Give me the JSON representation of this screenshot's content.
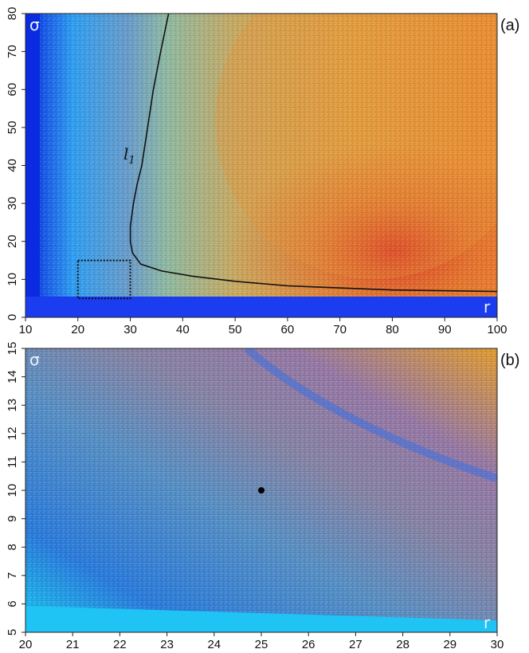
{
  "chart_data": [
    {
      "type": "heatmap",
      "panel_label": "(a)",
      "xlabel": "r",
      "ylabel": "σ",
      "xlim": [
        10,
        100
      ],
      "ylim": [
        0,
        80
      ],
      "xticks": [
        10,
        20,
        30,
        40,
        50,
        60,
        70,
        80,
        90,
        100
      ],
      "yticks": [
        0,
        10,
        20,
        30,
        40,
        50,
        60,
        70,
        80
      ],
      "colors": {
        "low": "#0a2be0",
        "low_mid": "#2f9df0",
        "mid": "#8fb8a0",
        "high_mid": "#e0a040",
        "high": "#d81c20"
      },
      "curve": {
        "label": "l",
        "label_sub": "1",
        "points": [
          [
            100,
            6.8
          ],
          [
            80,
            7.2
          ],
          [
            60,
            8.3
          ],
          [
            50,
            9.5
          ],
          [
            42,
            10.8
          ],
          [
            36,
            12.2
          ],
          [
            32,
            14
          ],
          [
            30.4,
            17
          ],
          [
            30,
            20
          ],
          [
            30,
            24
          ],
          [
            30.6,
            30
          ],
          [
            31.3,
            35
          ],
          [
            32.2,
            40
          ],
          [
            33.3,
            50
          ],
          [
            34.4,
            60
          ],
          [
            35.8,
            70
          ],
          [
            37.3,
            80
          ]
        ]
      },
      "inset_rect": {
        "x": [
          20,
          30
        ],
        "y": [
          5,
          15
        ]
      }
    },
    {
      "type": "heatmap",
      "panel_label": "(b)",
      "xlabel": "r",
      "ylabel": "σ",
      "xlim": [
        20,
        30
      ],
      "ylim": [
        5,
        15
      ],
      "xticks": [
        20,
        21,
        22,
        23,
        24,
        25,
        26,
        27,
        28,
        29,
        30
      ],
      "yticks": [
        5,
        6,
        7,
        8,
        9,
        10,
        11,
        12,
        13,
        14,
        15
      ],
      "colors": {
        "low": "#1ad0f8",
        "low_mid": "#2c7fe0",
        "mid": "#7f8ab0",
        "high_mid": "#9a7ca8",
        "high": "#e8a030"
      },
      "marked_point": {
        "x": 25,
        "y": 10
      }
    }
  ]
}
